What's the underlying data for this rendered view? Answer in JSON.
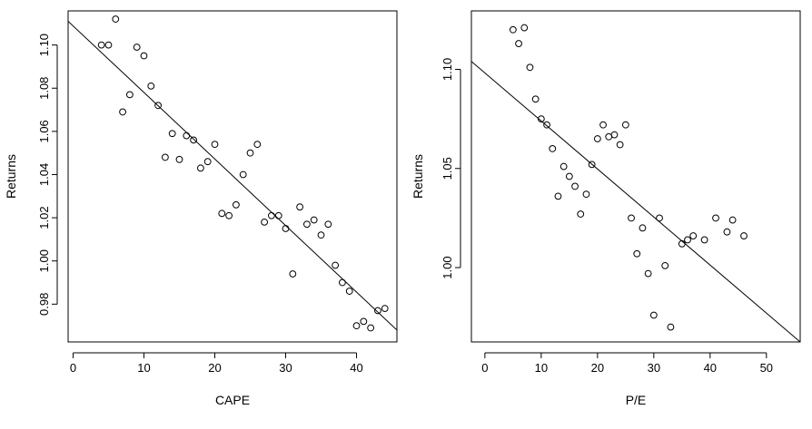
{
  "chart_data": [
    {
      "type": "scatter",
      "title": "",
      "xlabel": "CAPE",
      "ylabel": "Returns",
      "xlim": [
        -0.7,
        45.7
      ],
      "ylim": [
        0.9625,
        1.1158
      ],
      "xticks": [
        0,
        10,
        20,
        30,
        40
      ],
      "xtick_labels": [
        "0",
        "10",
        "20",
        "30",
        "40"
      ],
      "yticks": [
        0.98,
        1.0,
        1.02,
        1.04,
        1.06,
        1.08,
        1.1
      ],
      "ytick_labels": [
        "0.98",
        "1.00",
        "1.02",
        "1.04",
        "1.06",
        "1.08",
        "1.10"
      ],
      "points": [
        [
          4,
          1.1
        ],
        [
          5,
          1.1
        ],
        [
          6,
          1.112
        ],
        [
          7,
          1.069
        ],
        [
          8,
          1.077
        ],
        [
          9,
          1.099
        ],
        [
          10,
          1.095
        ],
        [
          11,
          1.081
        ],
        [
          12,
          1.072
        ],
        [
          13,
          1.048
        ],
        [
          14,
          1.059
        ],
        [
          15,
          1.047
        ],
        [
          16,
          1.058
        ],
        [
          17,
          1.056
        ],
        [
          18,
          1.043
        ],
        [
          19,
          1.046
        ],
        [
          20,
          1.054
        ],
        [
          21,
          1.022
        ],
        [
          22,
          1.021
        ],
        [
          23,
          1.026
        ],
        [
          24,
          1.04
        ],
        [
          25,
          1.05
        ],
        [
          26,
          1.054
        ],
        [
          27,
          1.018
        ],
        [
          28,
          1.021
        ],
        [
          29,
          1.021
        ],
        [
          30,
          1.015
        ],
        [
          31,
          0.994
        ],
        [
          32,
          1.025
        ],
        [
          33,
          1.017
        ],
        [
          34,
          1.019
        ],
        [
          35,
          1.012
        ],
        [
          36,
          1.017
        ],
        [
          37,
          0.998
        ],
        [
          38,
          0.99
        ],
        [
          39,
          0.986
        ],
        [
          40,
          0.97
        ],
        [
          41,
          0.972
        ],
        [
          42,
          0.969
        ],
        [
          43,
          0.977
        ],
        [
          44,
          0.978
        ]
      ],
      "fit_line": [
        [
          -0.7,
          1.111
        ],
        [
          45.7,
          0.968
        ]
      ]
    },
    {
      "type": "scatter",
      "title": "",
      "xlabel": "P/E",
      "ylabel": "Returns",
      "xlim": [
        -2.4,
        56.0
      ],
      "ylim": [
        0.9625,
        1.1295
      ],
      "xticks": [
        0,
        10,
        20,
        30,
        40,
        50
      ],
      "xtick_labels": [
        "0",
        "10",
        "20",
        "30",
        "40",
        "50"
      ],
      "yticks": [
        1.0,
        1.05,
        1.1
      ],
      "ytick_labels": [
        "1.00",
        "1.05",
        "1.10"
      ],
      "points": [
        [
          5,
          1.12
        ],
        [
          6,
          1.113
        ],
        [
          7,
          1.121
        ],
        [
          8,
          1.101
        ],
        [
          9,
          1.085
        ],
        [
          10,
          1.075
        ],
        [
          11,
          1.072
        ],
        [
          12,
          1.06
        ],
        [
          13,
          1.036
        ],
        [
          14,
          1.051
        ],
        [
          15,
          1.046
        ],
        [
          16,
          1.041
        ],
        [
          17,
          1.027
        ],
        [
          18,
          1.037
        ],
        [
          19,
          1.052
        ],
        [
          20,
          1.065
        ],
        [
          21,
          1.072
        ],
        [
          22,
          1.066
        ],
        [
          23,
          1.067
        ],
        [
          24,
          1.062
        ],
        [
          25,
          1.072
        ],
        [
          26,
          1.025
        ],
        [
          27,
          1.007
        ],
        [
          28,
          1.02
        ],
        [
          29,
          0.997
        ],
        [
          30,
          0.976
        ],
        [
          31,
          1.025
        ],
        [
          32,
          1.001
        ],
        [
          33,
          0.97
        ],
        [
          35,
          1.012
        ],
        [
          36,
          1.014
        ],
        [
          37,
          1.016
        ],
        [
          39,
          1.014
        ],
        [
          41,
          1.025
        ],
        [
          43,
          1.018
        ],
        [
          44,
          1.024
        ],
        [
          46,
          1.016
        ]
      ],
      "fit_line": [
        [
          -2.4,
          1.104
        ],
        [
          56.0,
          0.9625
        ]
      ]
    }
  ]
}
